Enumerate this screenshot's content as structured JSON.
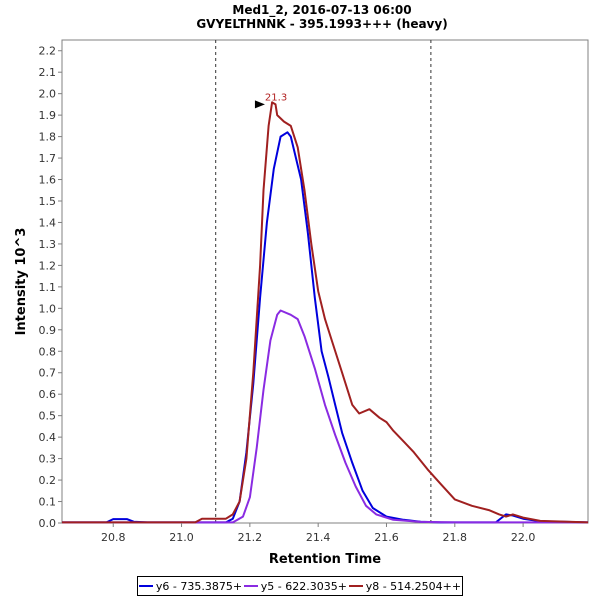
{
  "chart_data": {
    "type": "line",
    "title": "Med1_2, 2016-07-13 06:00",
    "subtitle": "GVYELTHNNK - 395.1993+++ (heavy)",
    "xlabel": "Retention Time",
    "ylabel": "Intensity 10^3",
    "xlim": [
      20.65,
      22.19
    ],
    "ylim": [
      0,
      2.25
    ],
    "x_ticks": [
      20.8,
      21.0,
      21.2,
      21.4,
      21.6,
      21.8,
      22.0
    ],
    "x_tick_labels": [
      "20.8",
      "21.0",
      "21.2",
      "21.4",
      "21.6",
      "21.8",
      "22.0"
    ],
    "y_ticks": [
      0,
      0.1,
      0.2,
      0.3,
      0.4,
      0.5,
      0.6,
      0.7,
      0.8,
      0.9,
      1.0,
      1.1,
      1.2,
      1.3,
      1.4,
      1.5,
      1.6,
      1.7,
      1.8,
      1.9,
      2.0,
      2.1,
      2.2
    ],
    "y_tick_labels": [
      "0.0",
      "0.1",
      "0.2",
      "0.3",
      "0.4",
      "0.5",
      "0.6",
      "0.7",
      "0.8",
      "0.9",
      "1.0",
      "1.1",
      "1.2",
      "1.3",
      "1.4",
      "1.5",
      "1.6",
      "1.7",
      "1.8",
      "1.9",
      "2.0",
      "2.1",
      "2.2"
    ],
    "vertical_lines": [
      21.1,
      21.73
    ],
    "annotation": {
      "text": "21.3",
      "x": 21.25,
      "y": 1.95,
      "color": "#b22222"
    },
    "series": [
      {
        "name": "y6 - 735.3875+",
        "color": "#0000dd",
        "points": [
          [
            20.65,
            0.003
          ],
          [
            20.78,
            0.003
          ],
          [
            20.8,
            0.018
          ],
          [
            20.84,
            0.018
          ],
          [
            20.86,
            0.006
          ],
          [
            20.9,
            0.003
          ],
          [
            21.1,
            0.003
          ],
          [
            21.13,
            0.003
          ],
          [
            21.15,
            0.02
          ],
          [
            21.17,
            0.1
          ],
          [
            21.19,
            0.33
          ],
          [
            21.21,
            0.65
          ],
          [
            21.23,
            1.05
          ],
          [
            21.25,
            1.4
          ],
          [
            21.27,
            1.65
          ],
          [
            21.29,
            1.8
          ],
          [
            21.31,
            1.82
          ],
          [
            21.32,
            1.8
          ],
          [
            21.35,
            1.6
          ],
          [
            21.37,
            1.35
          ],
          [
            21.39,
            1.05
          ],
          [
            21.41,
            0.8
          ],
          [
            21.43,
            0.68
          ],
          [
            21.45,
            0.55
          ],
          [
            21.47,
            0.42
          ],
          [
            21.5,
            0.28
          ],
          [
            21.53,
            0.15
          ],
          [
            21.56,
            0.07
          ],
          [
            21.6,
            0.03
          ],
          [
            21.65,
            0.015
          ],
          [
            21.7,
            0.006
          ],
          [
            21.76,
            0.003
          ],
          [
            21.92,
            0.003
          ],
          [
            21.95,
            0.04
          ],
          [
            21.97,
            0.035
          ],
          [
            22.0,
            0.02
          ],
          [
            22.05,
            0.008
          ],
          [
            22.19,
            0.003
          ]
        ]
      },
      {
        "name": "y5 - 622.3035+",
        "color": "#8a2be2",
        "points": [
          [
            20.65,
            0.003
          ],
          [
            21.15,
            0.003
          ],
          [
            21.18,
            0.03
          ],
          [
            21.2,
            0.12
          ],
          [
            21.22,
            0.35
          ],
          [
            21.24,
            0.62
          ],
          [
            21.26,
            0.85
          ],
          [
            21.28,
            0.97
          ],
          [
            21.29,
            0.99
          ],
          [
            21.32,
            0.97
          ],
          [
            21.34,
            0.95
          ],
          [
            21.36,
            0.87
          ],
          [
            21.39,
            0.72
          ],
          [
            21.42,
            0.55
          ],
          [
            21.45,
            0.41
          ],
          [
            21.48,
            0.28
          ],
          [
            21.51,
            0.17
          ],
          [
            21.54,
            0.08
          ],
          [
            21.57,
            0.04
          ],
          [
            21.62,
            0.015
          ],
          [
            21.7,
            0.005
          ],
          [
            21.8,
            0.003
          ],
          [
            22.19,
            0.003
          ]
        ]
      },
      {
        "name": "y8 - 514.2504++",
        "color": "#a02020",
        "points": [
          [
            20.65,
            0.003
          ],
          [
            21.04,
            0.003
          ],
          [
            21.06,
            0.02
          ],
          [
            21.1,
            0.02
          ],
          [
            21.13,
            0.02
          ],
          [
            21.15,
            0.04
          ],
          [
            21.17,
            0.1
          ],
          [
            21.19,
            0.3
          ],
          [
            21.21,
            0.7
          ],
          [
            21.23,
            1.2
          ],
          [
            21.24,
            1.55
          ],
          [
            21.255,
            1.85
          ],
          [
            21.265,
            1.96
          ],
          [
            21.275,
            1.95
          ],
          [
            21.28,
            1.9
          ],
          [
            21.3,
            1.87
          ],
          [
            21.32,
            1.85
          ],
          [
            21.34,
            1.75
          ],
          [
            21.36,
            1.55
          ],
          [
            21.38,
            1.3
          ],
          [
            21.4,
            1.08
          ],
          [
            21.42,
            0.95
          ],
          [
            21.44,
            0.85
          ],
          [
            21.47,
            0.7
          ],
          [
            21.5,
            0.55
          ],
          [
            21.52,
            0.51
          ],
          [
            21.55,
            0.53
          ],
          [
            21.58,
            0.49
          ],
          [
            21.6,
            0.47
          ],
          [
            21.62,
            0.43
          ],
          [
            21.65,
            0.38
          ],
          [
            21.68,
            0.33
          ],
          [
            21.72,
            0.25
          ],
          [
            21.76,
            0.18
          ],
          [
            21.8,
            0.11
          ],
          [
            21.85,
            0.08
          ],
          [
            21.9,
            0.06
          ],
          [
            21.93,
            0.04
          ],
          [
            21.95,
            0.03
          ],
          [
            21.97,
            0.04
          ],
          [
            22.0,
            0.025
          ],
          [
            22.05,
            0.01
          ],
          [
            22.19,
            0.003
          ]
        ]
      }
    ]
  }
}
